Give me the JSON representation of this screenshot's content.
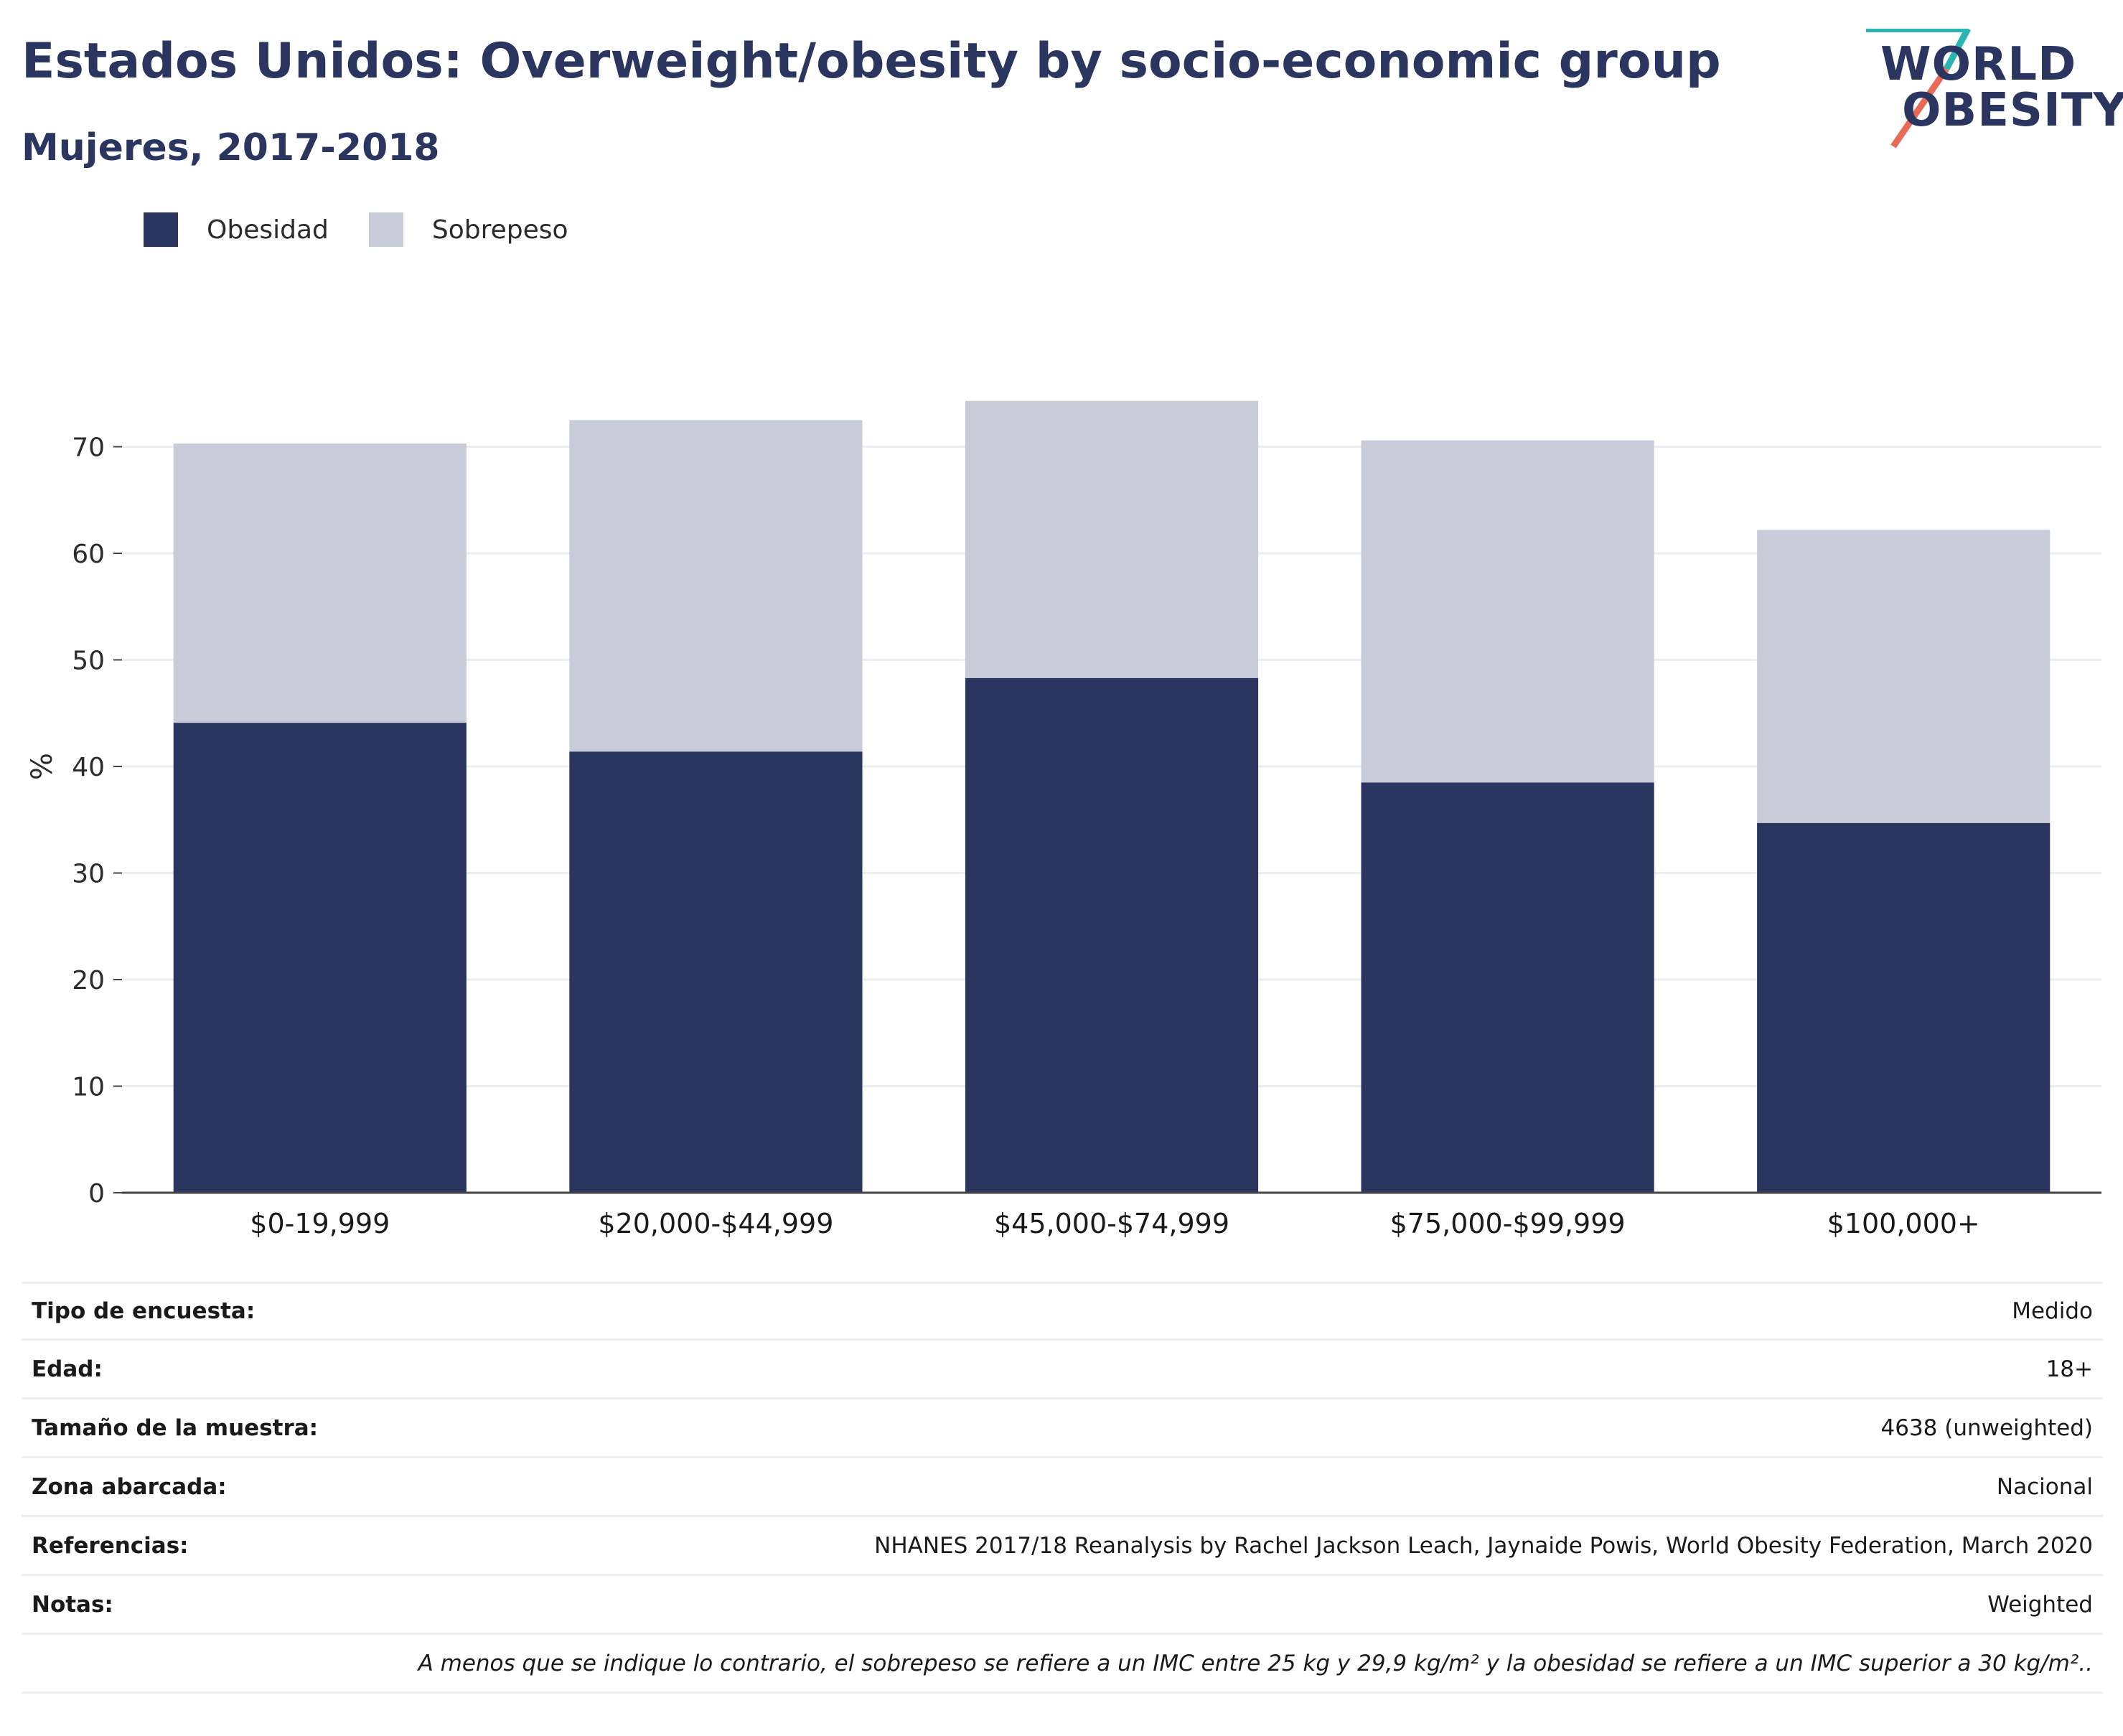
{
  "header": {
    "title": "Estados Unidos: Overweight/obesity by socio-economic group",
    "subtitle": "Mujeres, 2017-2018"
  },
  "logo": {
    "line1": "WORLD",
    "line2": "OBESITY",
    "accent_colors": [
      "#2bb5b2",
      "#ea6a58"
    ]
  },
  "legend": [
    {
      "label": "Obesidad",
      "color": "#2a365f"
    },
    {
      "label": "Sobrepeso",
      "color": "#c9ccd8"
    }
  ],
  "chart_data": {
    "type": "bar",
    "stacked": true,
    "categories": [
      "$0-19,999",
      "$20,000-$44,999",
      "$45,000-$74,999",
      "$75,000-$99,999",
      "$100,000+"
    ],
    "series": [
      {
        "name": "Obesidad",
        "color": "#2a365f",
        "values": [
          44.1,
          41.4,
          48.3,
          38.5,
          34.7
        ]
      },
      {
        "name": "Sobrepeso",
        "color": "#c9ccd8",
        "values": [
          26.2,
          31.1,
          26.0,
          32.1,
          27.5
        ]
      }
    ],
    "ylabel": "%",
    "ylim": [
      0,
      75
    ],
    "yticks": [
      0,
      10,
      20,
      30,
      40,
      50,
      60,
      70
    ],
    "grid": true,
    "legend_position": "top-left"
  },
  "metadata": [
    {
      "label": "Tipo de encuesta:",
      "value": "Medido"
    },
    {
      "label": "Edad:",
      "value": "18+"
    },
    {
      "label": "Tamaño de la muestra:",
      "value": "4638 (unweighted)"
    },
    {
      "label": "Zona abarcada:",
      "value": "Nacional"
    },
    {
      "label": "Referencias:",
      "value": "NHANES 2017/18 Reanalysis by Rachel Jackson Leach, Jaynaide Powis, World Obesity Federation, March 2020"
    },
    {
      "label": "Notas:",
      "value": "Weighted"
    }
  ],
  "footnote": "A menos que se indique lo contrario, el sobrepeso se refiere a un IMC entre 25 kg y 29,9 kg/m² y la obesidad se refiere a un IMC superior a 30 kg/m².."
}
